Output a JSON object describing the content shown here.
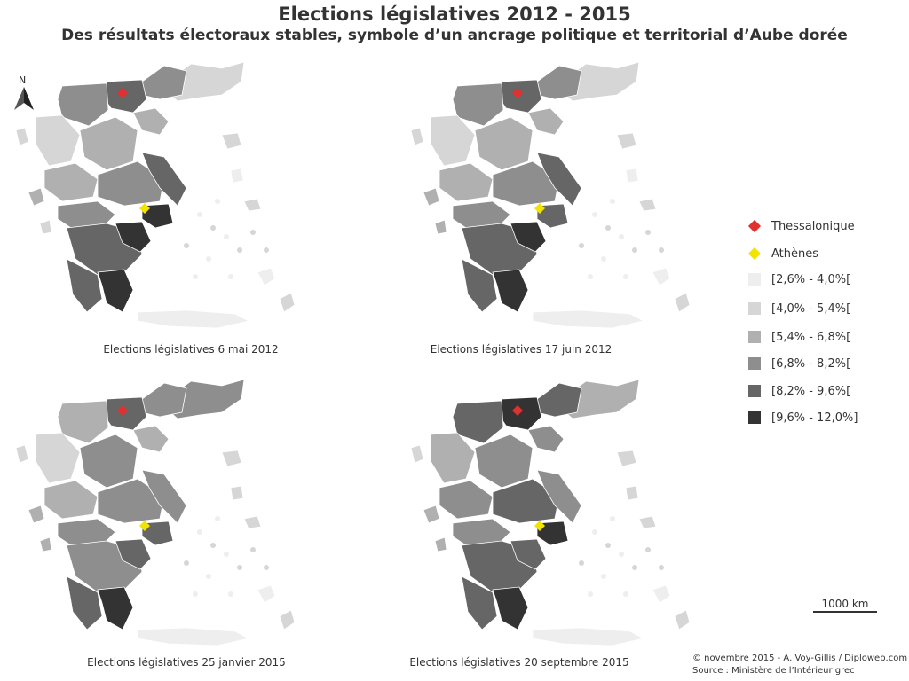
{
  "header": {
    "title": "Elections législatives 2012 - 2015",
    "subtitle": "Des résultats électoraux stables, symbole d’un ancrage politique et territorial d’Aube dorée"
  },
  "north_label": "N",
  "maps": [
    {
      "caption": "Elections législatives 6 mai 2012"
    },
    {
      "caption": "Elections législatives 17 juin 2012"
    },
    {
      "caption": "Elections législatives 25 janvier 2015"
    },
    {
      "caption": "Elections législatives 20 septembre 2015"
    }
  ],
  "legend": {
    "markers": [
      {
        "label": "Thessalonique",
        "color": "#e03030"
      },
      {
        "label": "Athènes",
        "color": "#f2e400"
      }
    ],
    "classes": [
      {
        "label": "[2,6% - 4,0%[",
        "color": "#eeeeee"
      },
      {
        "label": "[4,0% - 5,4%[",
        "color": "#d6d6d6"
      },
      {
        "label": "[5,4% - 6,8%[",
        "color": "#b0b0b0"
      },
      {
        "label": "[6,8% - 8,2%[",
        "color": "#8e8e8e"
      },
      {
        "label": "[8,2% - 9,6%[",
        "color": "#666666"
      },
      {
        "label": "[9,6% - 12,0%]",
        "color": "#333333"
      }
    ]
  },
  "scale": {
    "label": "1000 km"
  },
  "credits": {
    "line1": "© novembre 2015 - A. Voy-Gillis / Diploweb.com",
    "line2": "Source : Ministère de l’Intérieur grec"
  }
}
